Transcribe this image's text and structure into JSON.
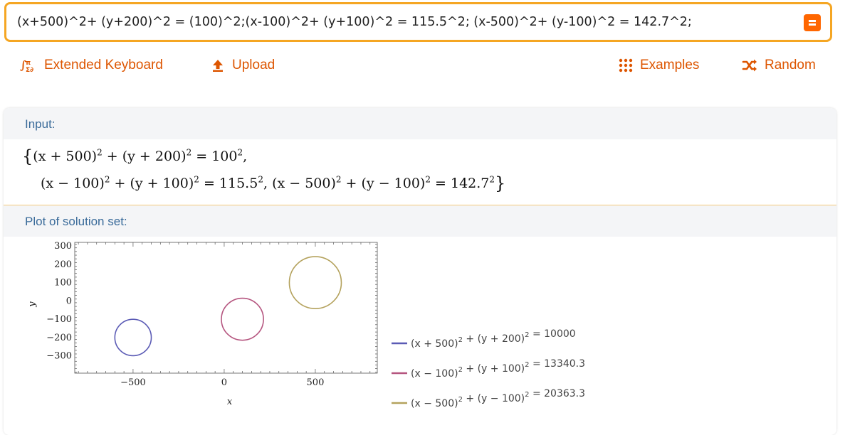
{
  "search": {
    "value": "(x+500)^2+ (y+200)^2 = (100)^2;(x-100)^2+ (y+100)^2 = 115.5^2; (x-500)^2+ (y-100)^2 = 142.7^2;"
  },
  "toolbar": {
    "extended_keyboard": "Extended Keyboard",
    "upload": "Upload",
    "examples": "Examples",
    "random": "Random"
  },
  "input_pod": {
    "title": "Input:",
    "line1": {
      "t1_base": "(x + 500)",
      "t1_exp": "2",
      "plus1": " + ",
      "t2_base": "(y + 200)",
      "t2_exp": "2",
      "eq": " = 100",
      "eq_exp": "2",
      "end": ","
    },
    "line2": {
      "t1_base": "(x − 100)",
      "t1_exp": "2",
      "plus1": " + ",
      "t2_base": "(y + 100)",
      "t2_exp": "2",
      "eq1": " = 115.5",
      "eq1_exp": "2",
      "sep": ", ",
      "t3_base": "(x − 500)",
      "t3_exp": "2",
      "plus2": " + ",
      "t4_base": "(y − 100)",
      "t4_exp": "2",
      "eq2": " = 142.7",
      "eq2_exp": "2",
      "end": "}"
    }
  },
  "plot_pod": {
    "title": "Plot of solution set:"
  },
  "chart_data": {
    "type": "scatter",
    "xlabel": "x",
    "ylabel": "y",
    "xlim": [
      -820,
      840
    ],
    "ylim": [
      -395,
      320
    ],
    "x_ticks": [
      -500,
      0,
      500
    ],
    "x_tick_labels": [
      "−500",
      "0",
      "500"
    ],
    "y_ticks": [
      300,
      200,
      100,
      0,
      -100,
      -200,
      -300
    ],
    "y_tick_labels": [
      "300",
      "200",
      "100",
      "0",
      "−100",
      "−200",
      "−300"
    ],
    "grid": false,
    "legend_position": "right",
    "series": [
      {
        "color": "#5b5bb5",
        "center": [
          -500,
          -200
        ],
        "radius": 100,
        "legend": {
          "a": "(x + 500)",
          "a_exp": "2",
          "plus": " + ",
          "b": "(y + 200)",
          "b_exp": "2",
          "rhs": " = 10000"
        }
      },
      {
        "color": "#b5557f",
        "center": [
          100,
          -100
        ],
        "radius": 115.5,
        "legend": {
          "a": "(x − 100)",
          "a_exp": "2",
          "plus": " + ",
          "b": "(y + 100)",
          "b_exp": "2",
          "rhs": " = 13340.3"
        }
      },
      {
        "color": "#b4a25d",
        "center": [
          500,
          100
        ],
        "radius": 142.7,
        "legend": {
          "a": "(x − 500)",
          "a_exp": "2",
          "plus": " + ",
          "b": "(y − 100)",
          "b_exp": "2",
          "rhs": " = 20363.3"
        }
      }
    ]
  }
}
